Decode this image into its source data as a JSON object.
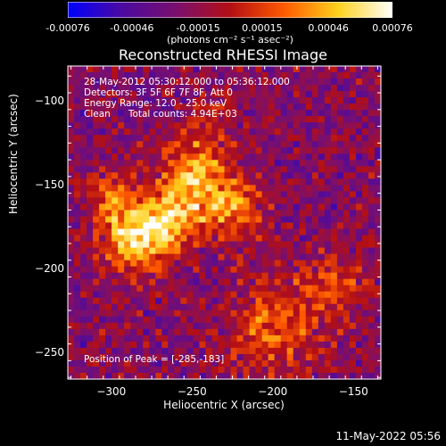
{
  "chart_data": {
    "type": "heatmap",
    "title": "Reconstructed RHESSI Image",
    "xlabel": "Heliocentric X (arcsec)",
    "ylabel": "Heliocentric Y (arcsec)",
    "xlim": [
      -327,
      -133
    ],
    "ylim": [
      -266,
      -79
    ],
    "x_ticks": [
      -300,
      -250,
      -200,
      -150
    ],
    "y_ticks": [
      -100,
      -150,
      -200,
      -250
    ],
    "colorbar": {
      "range": [
        -0.00076,
        0.00076
      ],
      "tick_values": [
        -0.00076,
        -0.00046,
        -0.00015,
        0.00015,
        0.00046,
        0.00076
      ],
      "tick_labels": [
        "-0.00076",
        "-0.00046",
        "-0.00015",
        "0.00015",
        "0.00046",
        "0.00076"
      ],
      "unit_label": "(photons cm⁻² s⁻¹ asec⁻²)",
      "colors": [
        "#0000ff",
        "#4b0aa0",
        "#7a0f6e",
        "#b40f14",
        "#ff5a00",
        "#ffd21e",
        "#ffffff"
      ]
    },
    "sources": [
      {
        "x": -285,
        "y": -183,
        "sigma": 14,
        "amplitude": 0.00076
      },
      {
        "x": -248,
        "y": -143,
        "sigma": 15,
        "amplitude": 0.00062
      },
      {
        "x": -262,
        "y": -170,
        "sigma": 13,
        "amplitude": 0.0006
      },
      {
        "x": -225,
        "y": -165,
        "sigma": 14,
        "amplitude": 0.00048
      },
      {
        "x": -300,
        "y": -158,
        "sigma": 12,
        "amplitude": 0.0004
      },
      {
        "x": -198,
        "y": -235,
        "sigma": 20,
        "amplitude": 0.00045
      },
      {
        "x": -160,
        "y": -210,
        "sigma": 14,
        "amplitude": 0.00032
      },
      {
        "x": -235,
        "y": -110,
        "sigma": 10,
        "amplitude": 0.0002
      }
    ],
    "background": -0.00022,
    "annotations": [
      "28-May-2012 05:30:12.000 to 05:36:12.000",
      "Detectors: 3F 5F 6F 7F 8F, Att 0",
      "Energy Range: 12.0 - 25.0 keV",
      "Clean      Total counts: 4.94E+03"
    ],
    "peak_label": "Position of Peak = [-285,-183]",
    "timestamp": "11-May-2022 05:56"
  }
}
